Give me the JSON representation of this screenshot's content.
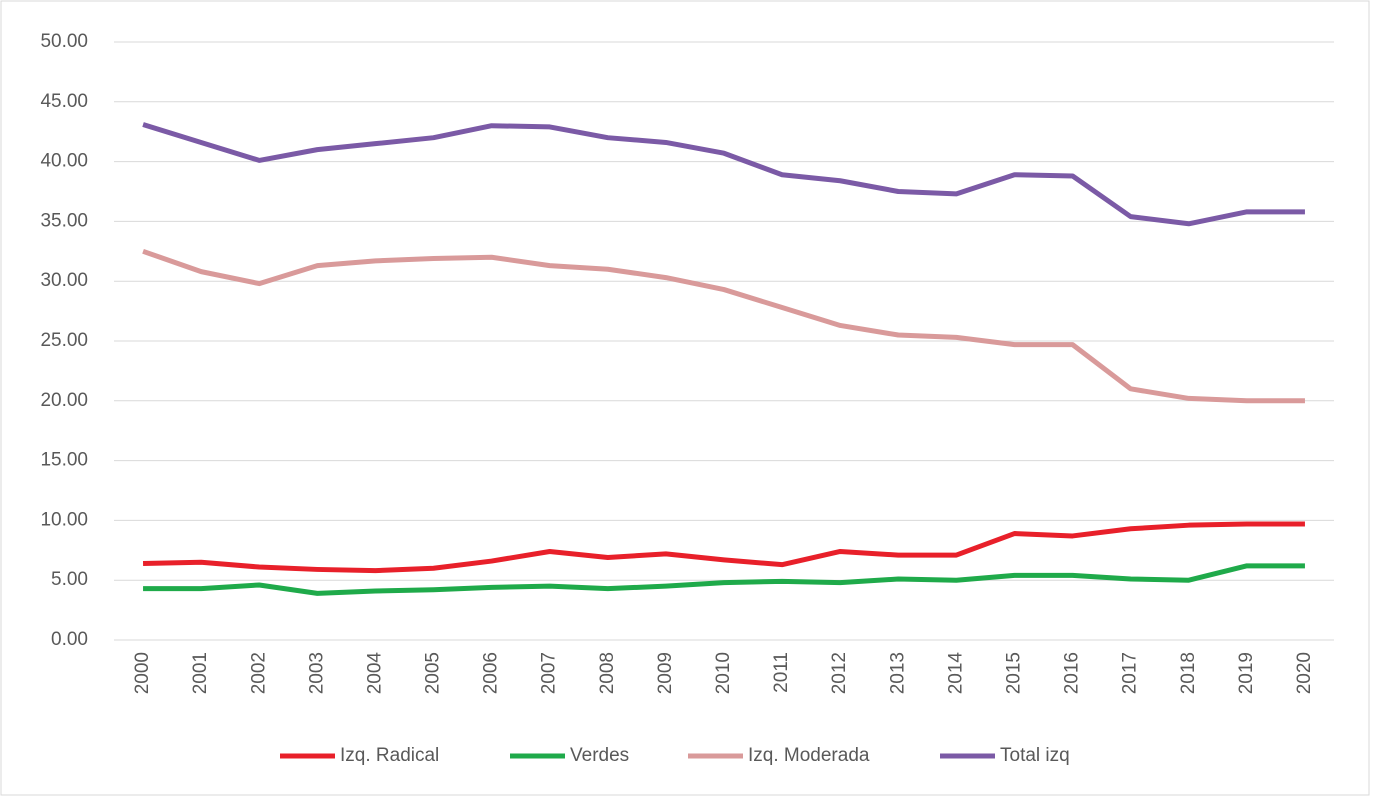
{
  "chart_data": {
    "type": "line",
    "categories": [
      "2000",
      "2001",
      "2002",
      "2003",
      "2004",
      "2005",
      "2006",
      "2007",
      "2008",
      "2009",
      "2010",
      "2011",
      "2012",
      "2013",
      "2014",
      "2015",
      "2016",
      "2017",
      "2018",
      "2019",
      "2020"
    ],
    "series": [
      {
        "name": "Izq. Radical",
        "color": "#e8202a",
        "values": [
          6.4,
          6.5,
          6.1,
          5.9,
          5.8,
          6.0,
          6.6,
          7.4,
          6.9,
          7.2,
          6.7,
          6.3,
          7.4,
          7.1,
          7.1,
          8.9,
          8.7,
          9.3,
          9.6,
          9.7,
          9.7
        ]
      },
      {
        "name": "Verdes",
        "color": "#1faa4a",
        "values": [
          4.3,
          4.3,
          4.6,
          3.9,
          4.1,
          4.2,
          4.4,
          4.5,
          4.3,
          4.5,
          4.8,
          4.9,
          4.8,
          5.1,
          5.0,
          5.4,
          5.4,
          5.1,
          5.0,
          6.2,
          6.2
        ]
      },
      {
        "name": "Izq. Moderada",
        "color": "#d99a9a",
        "values": [
          32.5,
          30.8,
          29.8,
          31.3,
          31.7,
          31.9,
          32.0,
          31.3,
          31.0,
          30.3,
          29.3,
          27.8,
          26.3,
          25.5,
          25.3,
          24.7,
          24.7,
          21.0,
          20.2,
          20.0,
          20.0
        ]
      },
      {
        "name": "Total izq",
        "color": "#7b5aa6",
        "values": [
          43.1,
          41.6,
          40.1,
          41.0,
          41.5,
          42.0,
          43.0,
          42.9,
          42.0,
          41.6,
          40.7,
          38.9,
          38.4,
          37.5,
          37.3,
          38.9,
          38.8,
          35.4,
          34.8,
          35.8,
          35.8
        ]
      }
    ],
    "ylim": [
      0,
      50
    ],
    "yticks": [
      {
        "value": 0,
        "label": "0.00"
      },
      {
        "value": 5,
        "label": "5.00"
      },
      {
        "value": 10,
        "label": "10.00"
      },
      {
        "value": 15,
        "label": "15.00"
      },
      {
        "value": 20,
        "label": "20.00"
      },
      {
        "value": 25,
        "label": "25.00"
      },
      {
        "value": 30,
        "label": "30.00"
      },
      {
        "value": 35,
        "label": "35.00"
      },
      {
        "value": 40,
        "label": "40.00"
      },
      {
        "value": 45,
        "label": "45.00"
      },
      {
        "value": 50,
        "label": "50.00"
      }
    ],
    "grid": true,
    "legend": "bottom"
  }
}
